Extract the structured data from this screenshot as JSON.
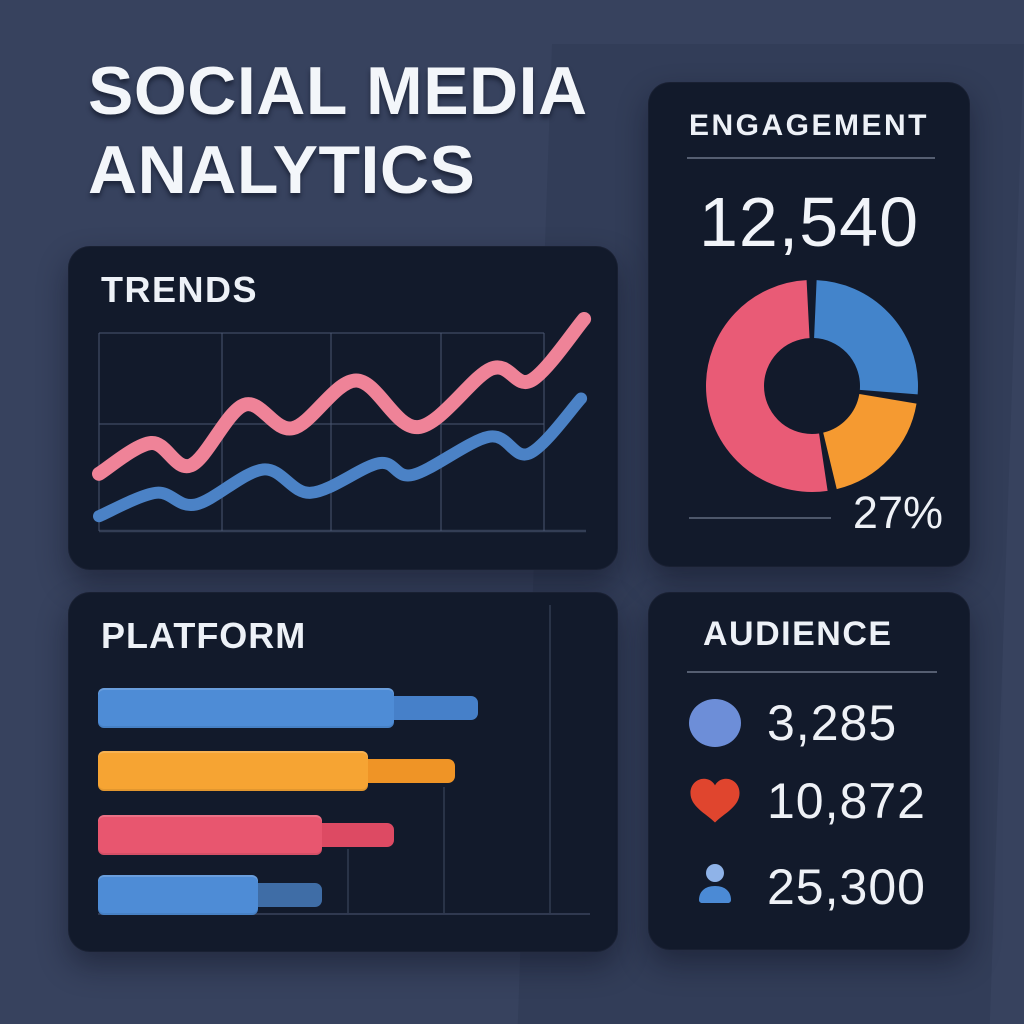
{
  "page": {
    "title_line1": "SOCIAL MEDIA",
    "title_line2": "ANALYTICS"
  },
  "colors": {
    "background": "#37425e",
    "panel": "#121a2b",
    "text": "#eef2f7",
    "divider": "#97a1b8",
    "grid": "#4a5671",
    "linePink": "#ef8398",
    "lineBlue": "#4b82c6",
    "donutBlue": "#4384cb",
    "donutOrange": "#f59a31",
    "donutPink": "#e95b76",
    "barBlue": "#4e8cd6",
    "barOrange": "#f6a433",
    "barPink": "#e8566f",
    "tailBlue": "#4680c9",
    "tailOrange": "#ef9426",
    "tailPink": "#dd4a63",
    "tailSteel": "#3f6da6",
    "iconCircle": "#6d8ed8",
    "iconHeart": "#e0452e",
    "personHead": "#8fb3e8",
    "personBody": "#4b8ad5"
  },
  "panels": {
    "trends": {
      "title": "TRENDS"
    },
    "engagement": {
      "title": "ENGAGEMENT",
      "value": "12,540",
      "percent_label": "27%"
    },
    "platform": {
      "title": "PLATFORM"
    },
    "audience": {
      "title": "AUDIENCE",
      "rows": [
        {
          "icon": "circle-icon",
          "value": "3,285"
        },
        {
          "icon": "heart-icon",
          "value": "10,872"
        },
        {
          "icon": "person-icon",
          "value": "25,300"
        }
      ]
    }
  },
  "chart_data": [
    {
      "type": "line",
      "panel": "trends",
      "title": "TRENDS",
      "xlabel": "",
      "ylabel": "",
      "x_range": [
        0,
        100
      ],
      "y_range": [
        0,
        100
      ],
      "grid": true,
      "legend": "none",
      "series": [
        {
          "name": "series-pink",
          "color_key": "linePink",
          "stroke_width": 14,
          "points": [
            [
              0,
              27
            ],
            [
              10.7,
              41.5
            ],
            [
              18.9,
              31
            ],
            [
              29.8,
              59.5
            ],
            [
              39.8,
              48.5
            ],
            [
              52.8,
              71
            ],
            [
              65.5,
              49
            ],
            [
              80.5,
              76.5
            ],
            [
              88.7,
              71
            ],
            [
              99.6,
              100
            ]
          ]
        },
        {
          "name": "series-blue",
          "color_key": "lineBlue",
          "stroke_width": 12,
          "points": [
            [
              0,
              7
            ],
            [
              11.7,
              18
            ],
            [
              19.9,
              12.5
            ],
            [
              33.7,
              29
            ],
            [
              43.5,
              18
            ],
            [
              57.5,
              32
            ],
            [
              64.5,
              26.5
            ],
            [
              80.1,
              44.5
            ],
            [
              88.3,
              36.5
            ],
            [
              99,
              62.5
            ]
          ]
        }
      ]
    },
    {
      "type": "donut",
      "panel": "engagement",
      "title": "ENGAGEMENT",
      "center_total": "12,540",
      "callout_label": "27%",
      "inner_radius_ratio": 0.45,
      "start_angle_deg": 0,
      "clockwise": true,
      "segments": [
        {
          "name": "blue",
          "value": 27,
          "color_key": "donutBlue"
        },
        {
          "name": "orange",
          "value": 20,
          "color_key": "donutOrange"
        },
        {
          "name": "pink",
          "value": 53,
          "color_key": "donutPink"
        }
      ]
    },
    {
      "type": "bar",
      "panel": "platform",
      "title": "PLATFORM",
      "orientation": "horizontal",
      "x_range": [
        0,
        100
      ],
      "categories": [
        "bar-1",
        "bar-2",
        "bar-3",
        "bar-4"
      ],
      "bars": [
        {
          "main_value": 78,
          "total_value": 100,
          "color_key": "barBlue",
          "tail_color_key": "tailBlue"
        },
        {
          "main_value": 71,
          "total_value": 94,
          "color_key": "barOrange",
          "tail_color_key": "tailOrange"
        },
        {
          "main_value": 59,
          "total_value": 78,
          "color_key": "barPink",
          "tail_color_key": "tailPink"
        },
        {
          "main_value": 42,
          "total_value": 59,
          "color_key": "barBlue",
          "tail_color_key": "tailSteel"
        }
      ]
    }
  ]
}
